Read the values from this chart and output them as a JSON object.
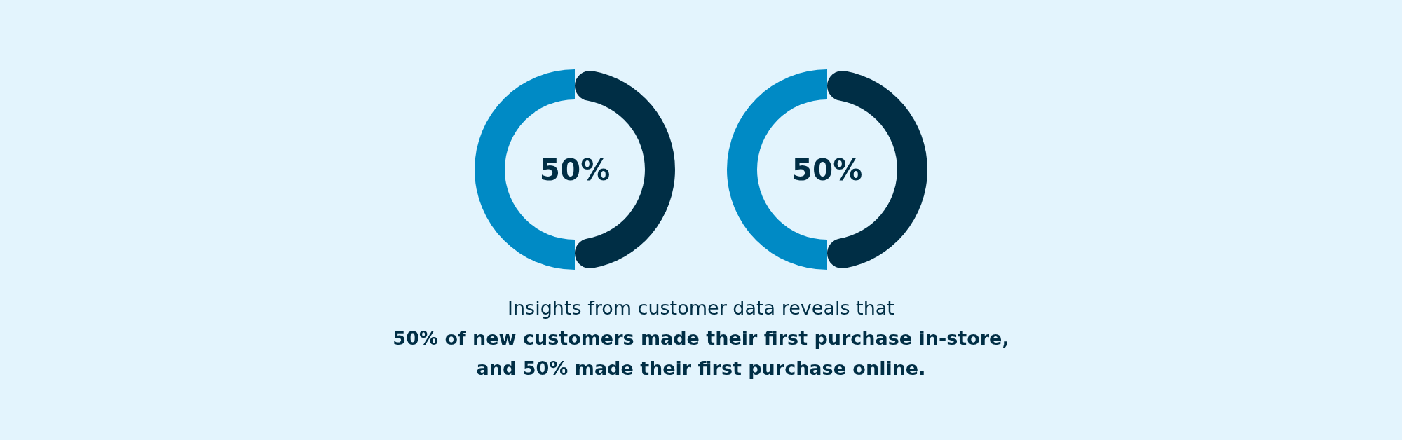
{
  "chart_data": [
    {
      "type": "donut",
      "categories": [
        null,
        null
      ],
      "values": [
        50,
        50
      ],
      "colors": [
        "#002e45",
        "#008ac5"
      ],
      "annotations": [
        "50%"
      ]
    },
    {
      "type": "donut",
      "categories": [
        null,
        null
      ],
      "values": [
        50,
        50
      ],
      "colors": [
        "#002e45",
        "#008ac5"
      ],
      "annotations": [
        "50%"
      ]
    },
    {
      "type": "other",
      "annotations": [
        "Insights from customer data reveals that",
        "50% of new customers made their first purchase in-store,",
        "and 50% made their first purchase online."
      ]
    }
  ]
}
